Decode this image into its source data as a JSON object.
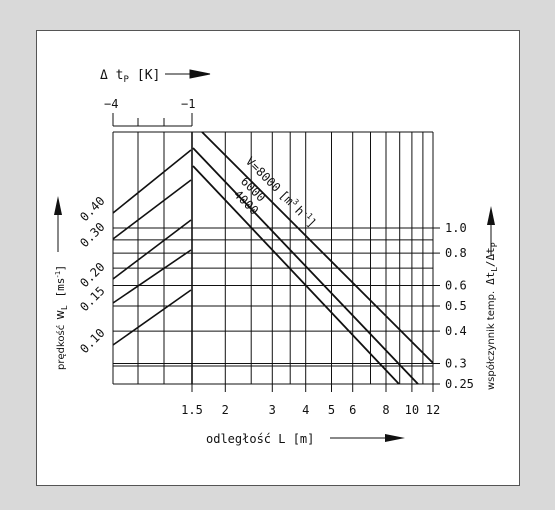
{
  "top_axis": {
    "label": "Δ t",
    "label_sub": "P",
    "unit": "[K]",
    "ticks": [
      "−4",
      "−1"
    ]
  },
  "bottom_axis": {
    "label": "odległość  L  [m]",
    "ticks": [
      "1.5",
      "2",
      "3",
      "4",
      "5",
      "6",
      "8",
      "10",
      "12"
    ],
    "values": [
      1.5,
      2,
      3,
      4,
      5,
      6,
      8,
      10,
      12
    ]
  },
  "left_axis": {
    "label": "prędkość",
    "label_symbol": "w",
    "label_sub": "L",
    "unit": "[ms",
    "unit_sup": "-1",
    "unit_end": "]",
    "ticks": [
      "0.40",
      "0.30",
      "0.20",
      "0.15",
      "0.10"
    ]
  },
  "right_axis": {
    "label": "współczynnik temp.",
    "ratio_num": "Δt",
    "ratio_num_sub": "L",
    "ratio_den": "/Δt",
    "ratio_den_sub": "P",
    "ticks": [
      "1.0",
      "0.8",
      "0.6",
      "0.5",
      "0.4",
      "0.3",
      "0.25"
    ],
    "values": [
      1.0,
      0.8,
      0.6,
      0.5,
      0.4,
      0.3,
      0.25
    ]
  },
  "flow_lines": {
    "label_prefix": "V=8000",
    "unit_open": "[m",
    "unit_sup": "3",
    "unit_h": "h",
    "unit_h_sup": "-1",
    "unit_close": "]",
    "lines": [
      "6000",
      "4000"
    ]
  },
  "colors": {
    "ink": "#111111",
    "background": "#d9d9d9",
    "card": "#ffffff"
  }
}
